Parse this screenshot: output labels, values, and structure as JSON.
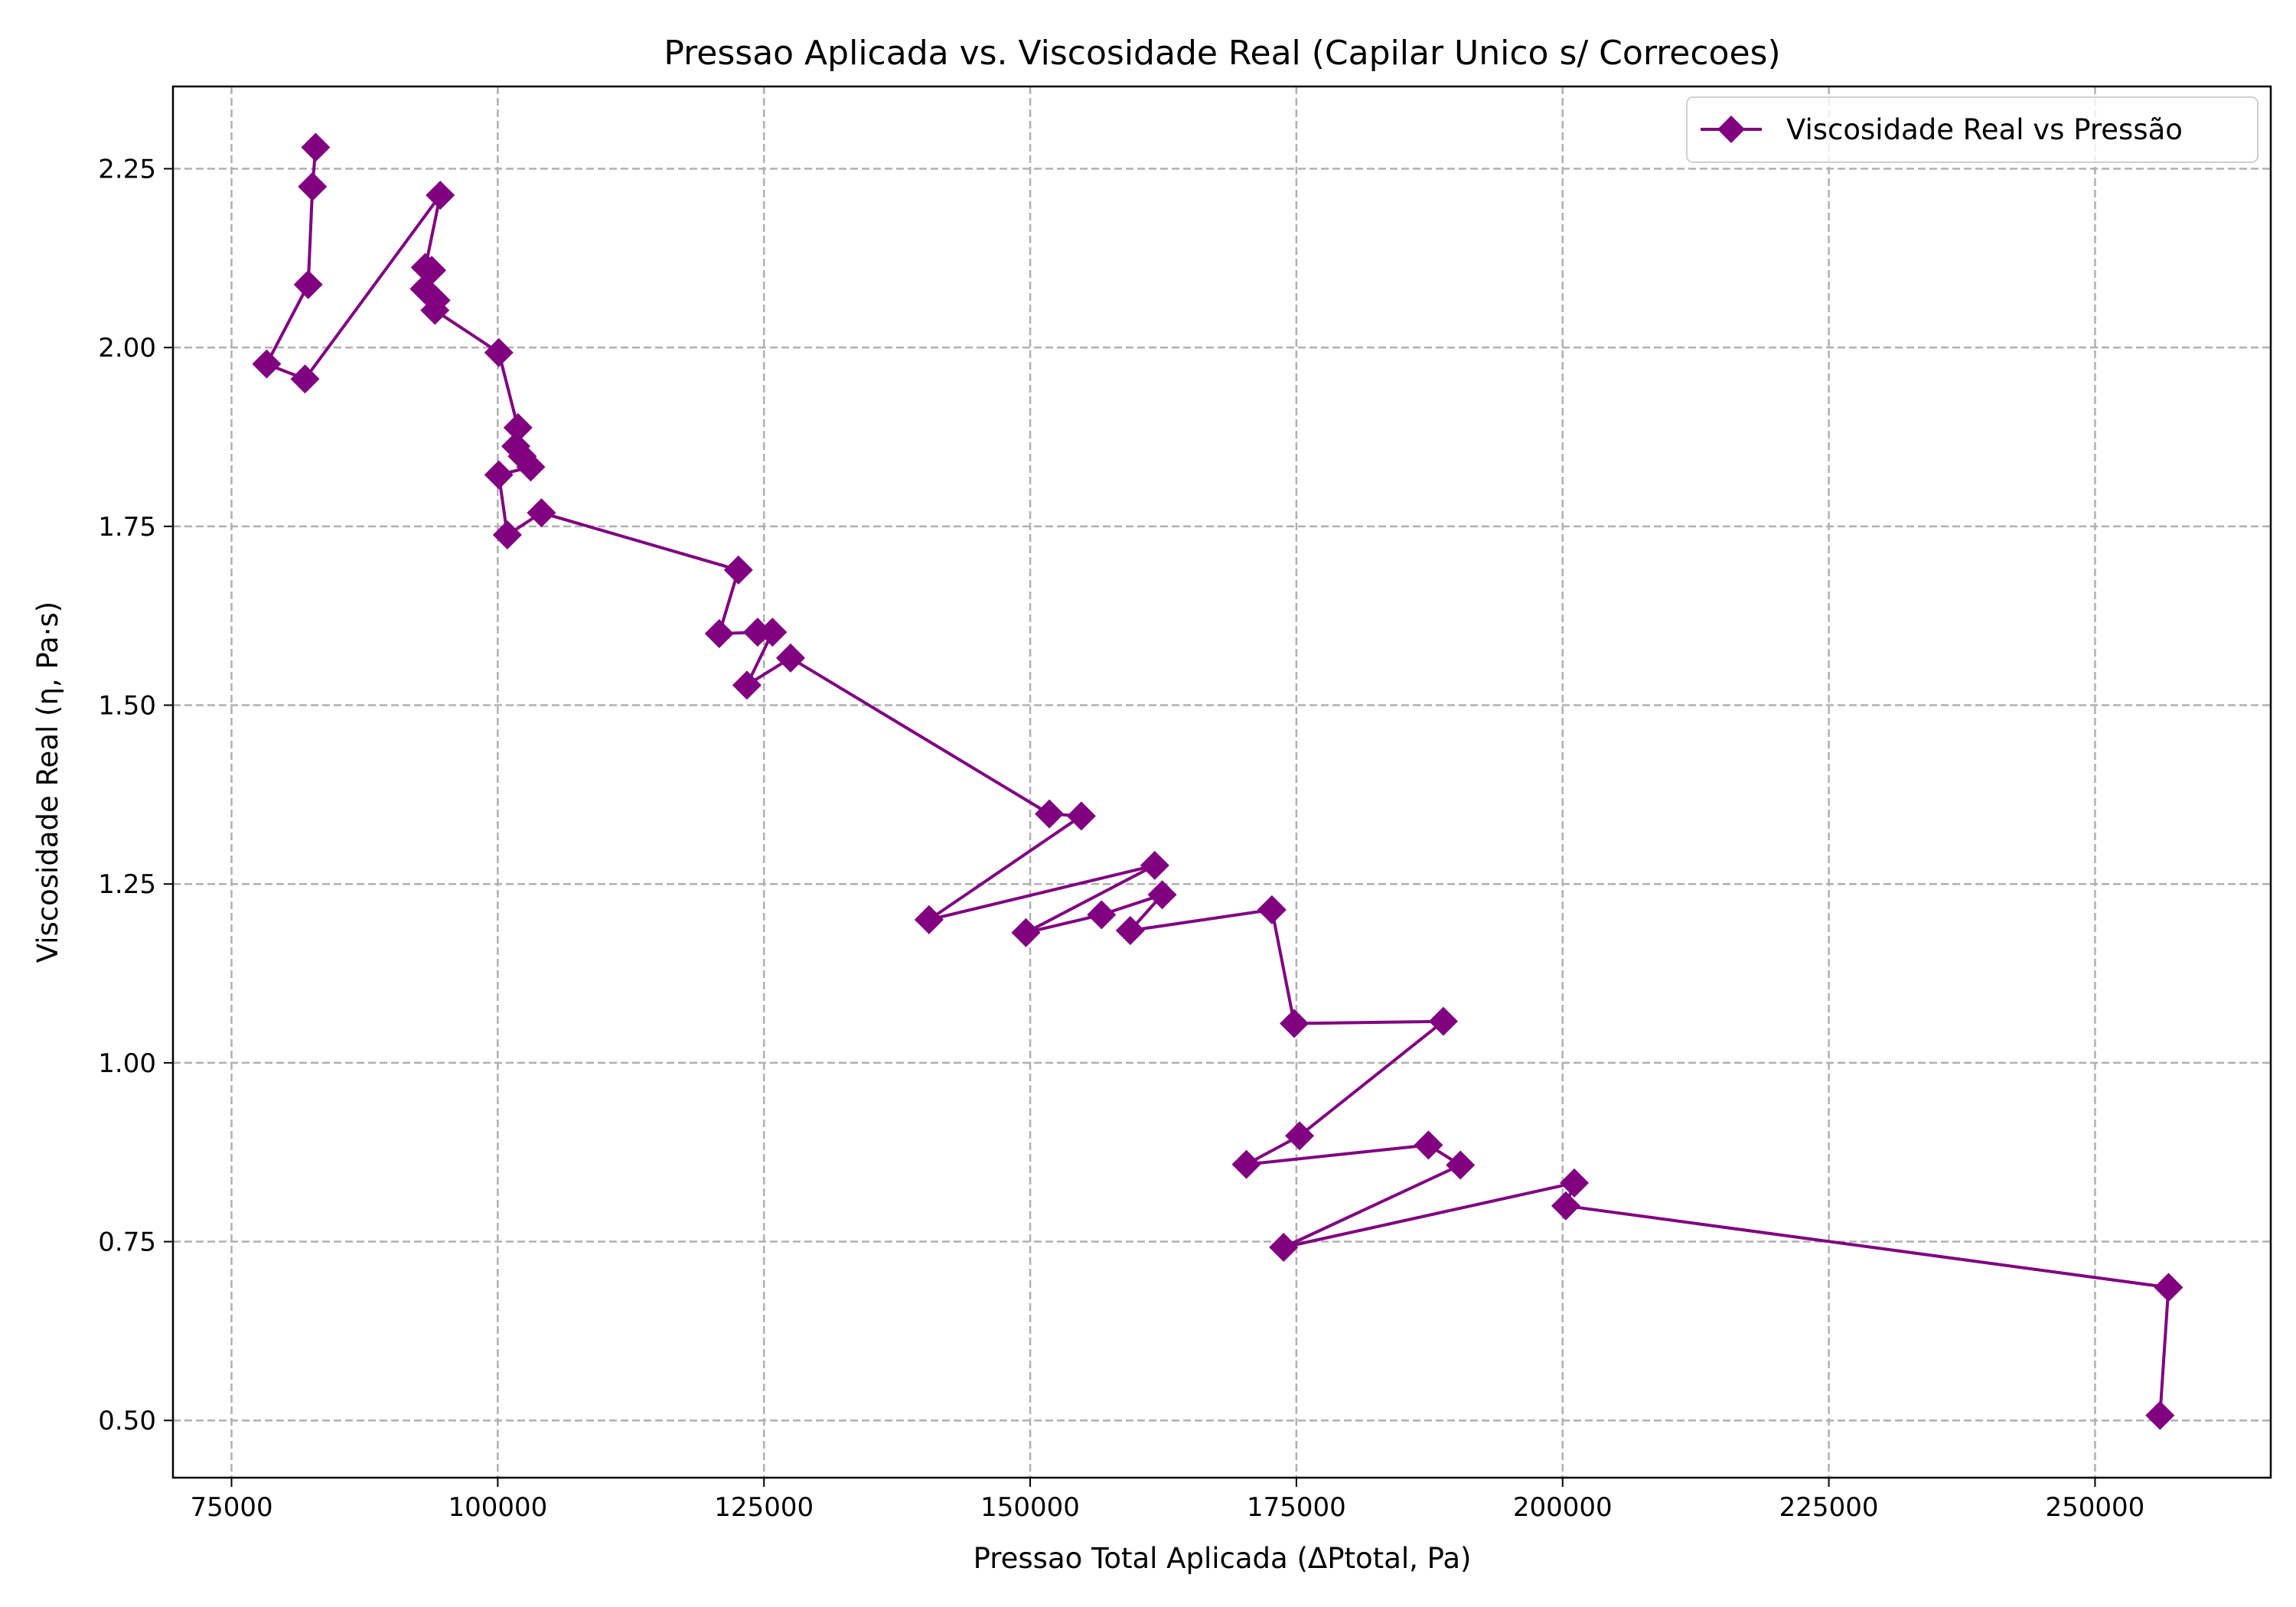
{
  "chart_data": {
    "type": "line",
    "title": "Pressao Aplicada vs. Viscosidade Real (Capilar Unico s/ Correcoes)",
    "xlabel": "Pressao Total Aplicada (ΔPtotal, Pa)",
    "ylabel": "Viscosidade Real (η, Pa·s)",
    "xlim": [
      69500,
      266500
    ],
    "ylim": [
      0.42,
      2.365
    ],
    "xticks": [
      75000,
      100000,
      125000,
      150000,
      175000,
      200000,
      225000,
      250000
    ],
    "xtick_labels": [
      "75000",
      "100000",
      "125000",
      "150000",
      "175000",
      "200000",
      "225000",
      "250000"
    ],
    "yticks": [
      0.5,
      0.75,
      1.0,
      1.25,
      1.5,
      1.75,
      2.0,
      2.25
    ],
    "ytick_labels": [
      "0.50",
      "0.75",
      "1.00",
      "1.25",
      "1.50",
      "1.75",
      "2.00",
      "2.25"
    ],
    "grid": true,
    "legend_position": "top-right",
    "series": [
      {
        "name": "Viscosidade Real vs Pressão",
        "color": "#800080",
        "marker": "diamond",
        "points": [
          [
            82900,
            2.28
          ],
          [
            82600,
            2.225
          ],
          [
            82200,
            2.088
          ],
          [
            78300,
            1.977
          ],
          [
            81900,
            1.956
          ],
          [
            94600,
            2.213
          ],
          [
            93200,
            2.112
          ],
          [
            93800,
            2.108
          ],
          [
            93100,
            2.082
          ],
          [
            94200,
            2.066
          ],
          [
            94100,
            2.052
          ],
          [
            100100,
            1.993
          ],
          [
            101900,
            1.888
          ],
          [
            101700,
            1.862
          ],
          [
            102300,
            1.848
          ],
          [
            103100,
            1.833
          ],
          [
            100100,
            1.822
          ],
          [
            100900,
            1.738
          ],
          [
            104100,
            1.769
          ],
          [
            122600,
            1.689
          ],
          [
            120800,
            1.6
          ],
          [
            124400,
            1.602
          ],
          [
            125800,
            1.602
          ],
          [
            123400,
            1.528
          ],
          [
            127500,
            1.566
          ],
          [
            151800,
            1.348
          ],
          [
            154800,
            1.345
          ],
          [
            140500,
            1.2
          ],
          [
            161700,
            1.276
          ],
          [
            149600,
            1.182
          ],
          [
            156700,
            1.207
          ],
          [
            162400,
            1.235
          ],
          [
            159400,
            1.185
          ],
          [
            172700,
            1.214
          ],
          [
            174800,
            1.055
          ],
          [
            188800,
            1.058
          ],
          [
            175300,
            0.898
          ],
          [
            170300,
            0.858
          ],
          [
            187400,
            0.885
          ],
          [
            190400,
            0.857
          ],
          [
            173800,
            0.742
          ],
          [
            201100,
            0.832
          ],
          [
            200300,
            0.8
          ],
          [
            256900,
            0.686
          ],
          [
            256100,
            0.507
          ]
        ]
      }
    ]
  }
}
